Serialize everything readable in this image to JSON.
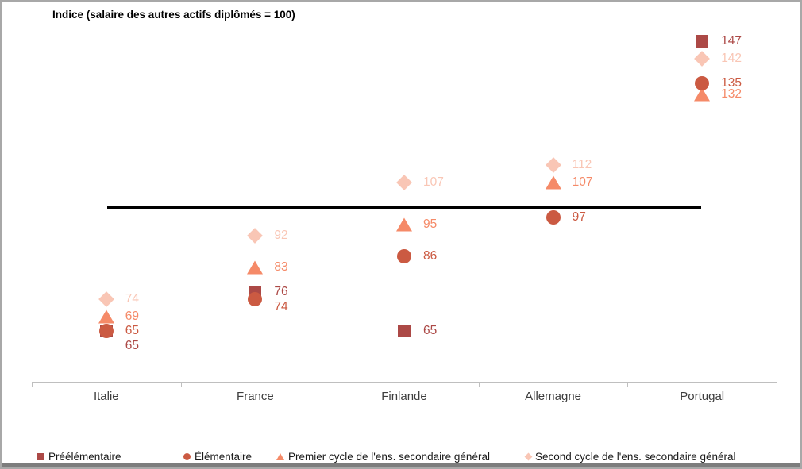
{
  "title": "Indice (salaire des autres actifs diplômés = 100)",
  "chart_data": {
    "type": "scatter",
    "title": "Indice (salaire des autres actifs diplômés = 100)",
    "categories": [
      "Italie",
      "France",
      "Finlande",
      "Allemagne",
      "Portugal"
    ],
    "ylabel": "Indice",
    "ylim": [
      48,
      155
    ],
    "grid": false,
    "legend_position": "bottom",
    "reference_line": {
      "value": 100,
      "color": "#000000"
    },
    "series": [
      {
        "name": "Préélémentaire",
        "marker": "square",
        "color": "#ac4946",
        "values": [
          65,
          76,
          65,
          null,
          147
        ]
      },
      {
        "name": "Élémentaire",
        "marker": "circle",
        "color": "#cb5a42",
        "values": [
          65,
          74,
          86,
          97,
          135
        ]
      },
      {
        "name": "Premier cycle de l'ens. secondaire général",
        "marker": "triangle",
        "color": "#f58a68",
        "values": [
          69,
          83,
          95,
          107,
          132
        ]
      },
      {
        "name": "Second cycle de l'ens. secondaire général",
        "marker": "diamond",
        "color": "#f9c6b5",
        "values": [
          74,
          92,
          107,
          112,
          142
        ]
      }
    ],
    "data_labels_shown": true,
    "axis_color": "#bfbfbf",
    "category_label_color": "#3d3d3d"
  }
}
